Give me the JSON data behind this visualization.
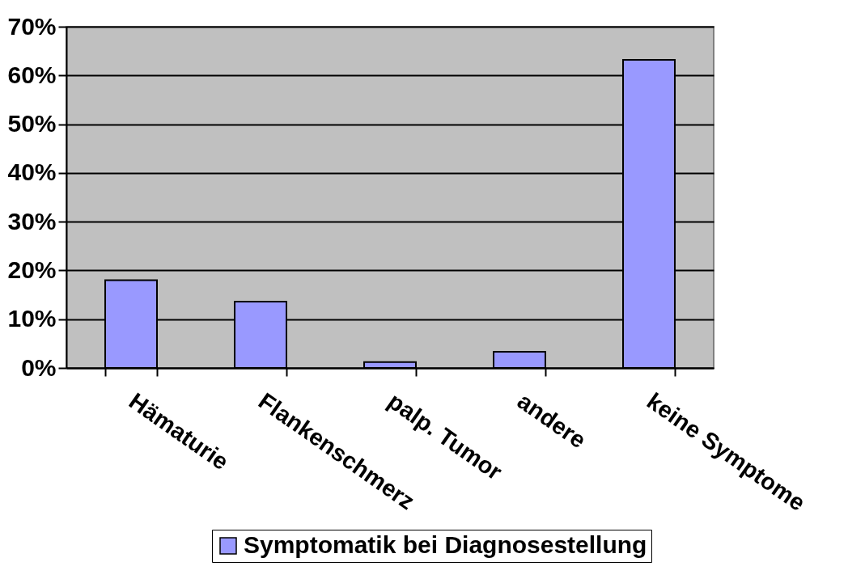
{
  "chart_data": {
    "type": "bar",
    "categories": [
      "Hämaturie",
      "Flankenschmerz",
      "palp. Tumor",
      "andere",
      "keine Symptome"
    ],
    "series": [
      {
        "name": "Symptomatik bei Diagnosestellung",
        "color": "#9999ff",
        "values": [
          18,
          13.6,
          1.2,
          3.3,
          63.2
        ]
      }
    ],
    "ylim": [
      0,
      70
    ],
    "yticks": [
      {
        "value": 0,
        "label": "0%"
      },
      {
        "value": 10,
        "label": "10%"
      },
      {
        "value": 20,
        "label": "20%"
      },
      {
        "value": 30,
        "label": "30%"
      },
      {
        "value": 40,
        "label": "40%"
      },
      {
        "value": 50,
        "label": "50%"
      },
      {
        "value": 60,
        "label": "60%"
      },
      {
        "value": 70,
        "label": "70%"
      }
    ],
    "grid": "y",
    "legend": "bottom"
  }
}
